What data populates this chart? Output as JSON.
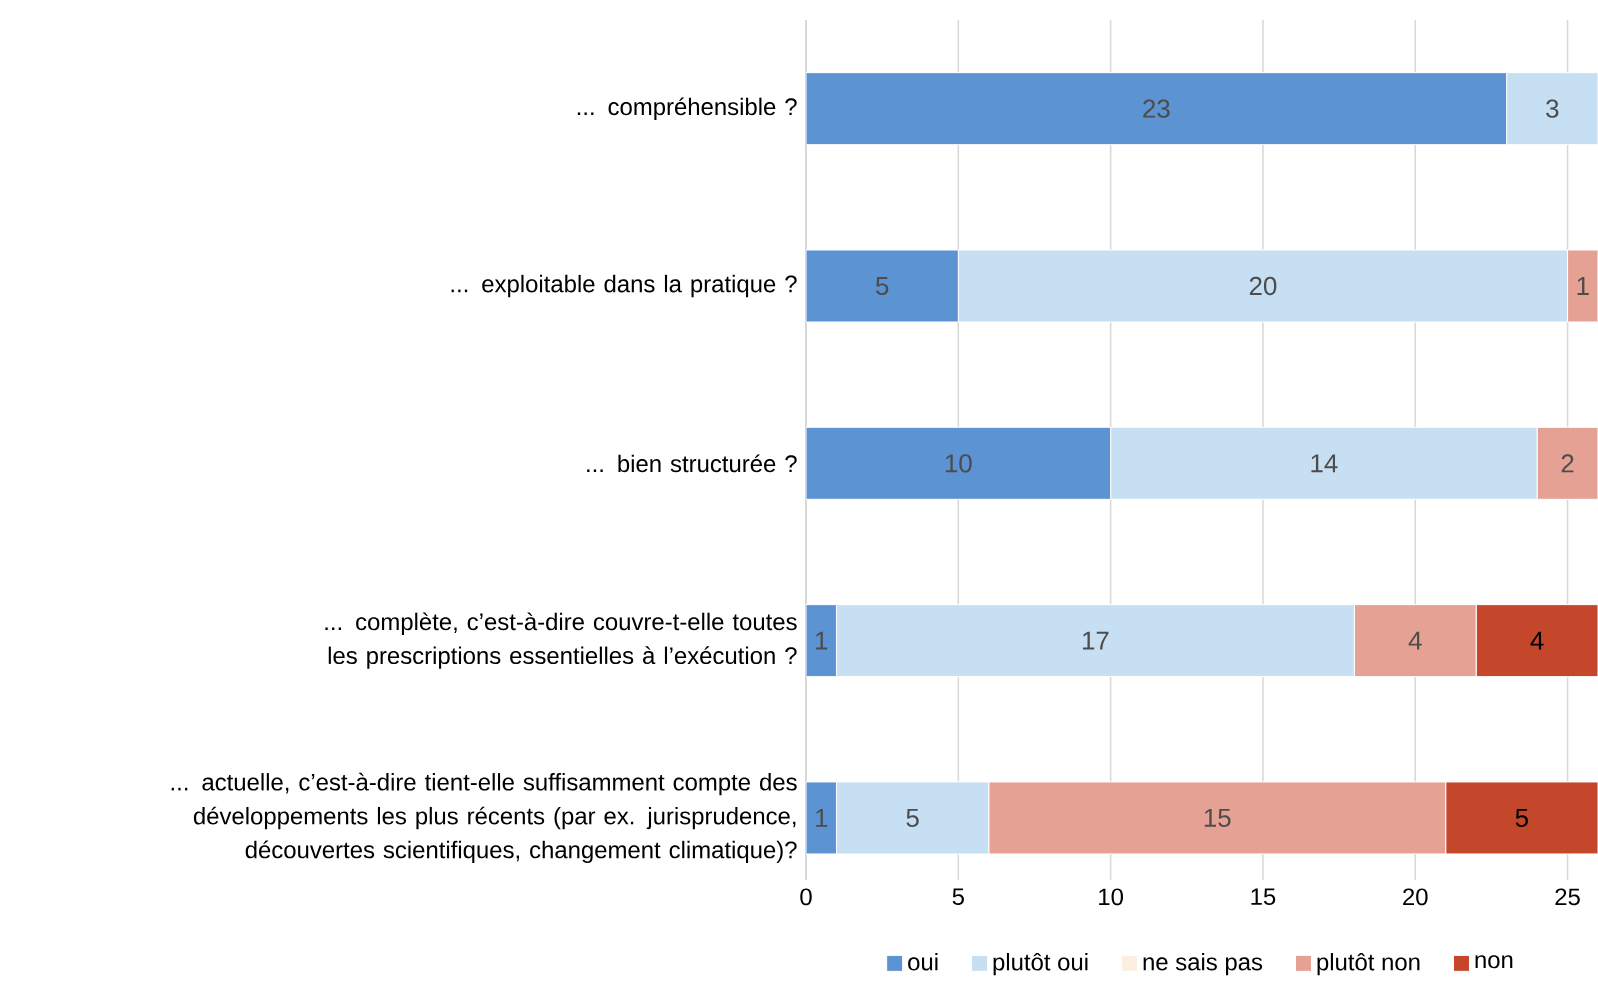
{
  "chart_data": {
    "type": "bar",
    "orientation": "horizontal",
    "stacked": true,
    "categories": [
      "... compréhensible ?",
      "... exploitable dans la pratique ?",
      "... bien structurée ?",
      "... complète, c’est-à-dire couvre-t-elle toutes les prescriptions essentielles à l’exécution ?",
      "... actuelle, c’est-à-dire tient-elle suffisamment compte des développements les plus récents (par ex. jurisprudence, découvertes scientifiques, changement climatique)?"
    ],
    "series": [
      {
        "name": "oui",
        "color": "#5b93d3",
        "values": [
          23,
          5,
          10,
          1,
          1
        ],
        "value_labels": [
          "23",
          "5",
          "10",
          "1",
          "1"
        ]
      },
      {
        "name": "plutôt oui",
        "color": "#c7dff2",
        "values": [
          3,
          20,
          14,
          17,
          5
        ],
        "value_labels": [
          "3",
          "20",
          "14",
          "17",
          "5"
        ]
      },
      {
        "name": "ne sais pas",
        "color": "#fdeee2",
        "values": [
          0,
          0,
          0,
          0,
          0
        ],
        "value_labels": [
          null,
          null,
          null,
          null,
          null
        ]
      },
      {
        "name": "plutôt non",
        "color": "#e4a194",
        "values": [
          0,
          1,
          2,
          4,
          15
        ],
        "value_labels": [
          null,
          "1",
          "2",
          "4",
          "15"
        ]
      },
      {
        "name": "non",
        "color": "#c4462b",
        "values": [
          0,
          0,
          0,
          4,
          5
        ],
        "value_labels": [
          null,
          null,
          null,
          "4",
          "5"
        ]
      }
    ],
    "xlim": [
      0,
      26
    ],
    "xticks": [
      0,
      5,
      10,
      15,
      20,
      25
    ],
    "grid": "x",
    "legend": "bottom"
  }
}
